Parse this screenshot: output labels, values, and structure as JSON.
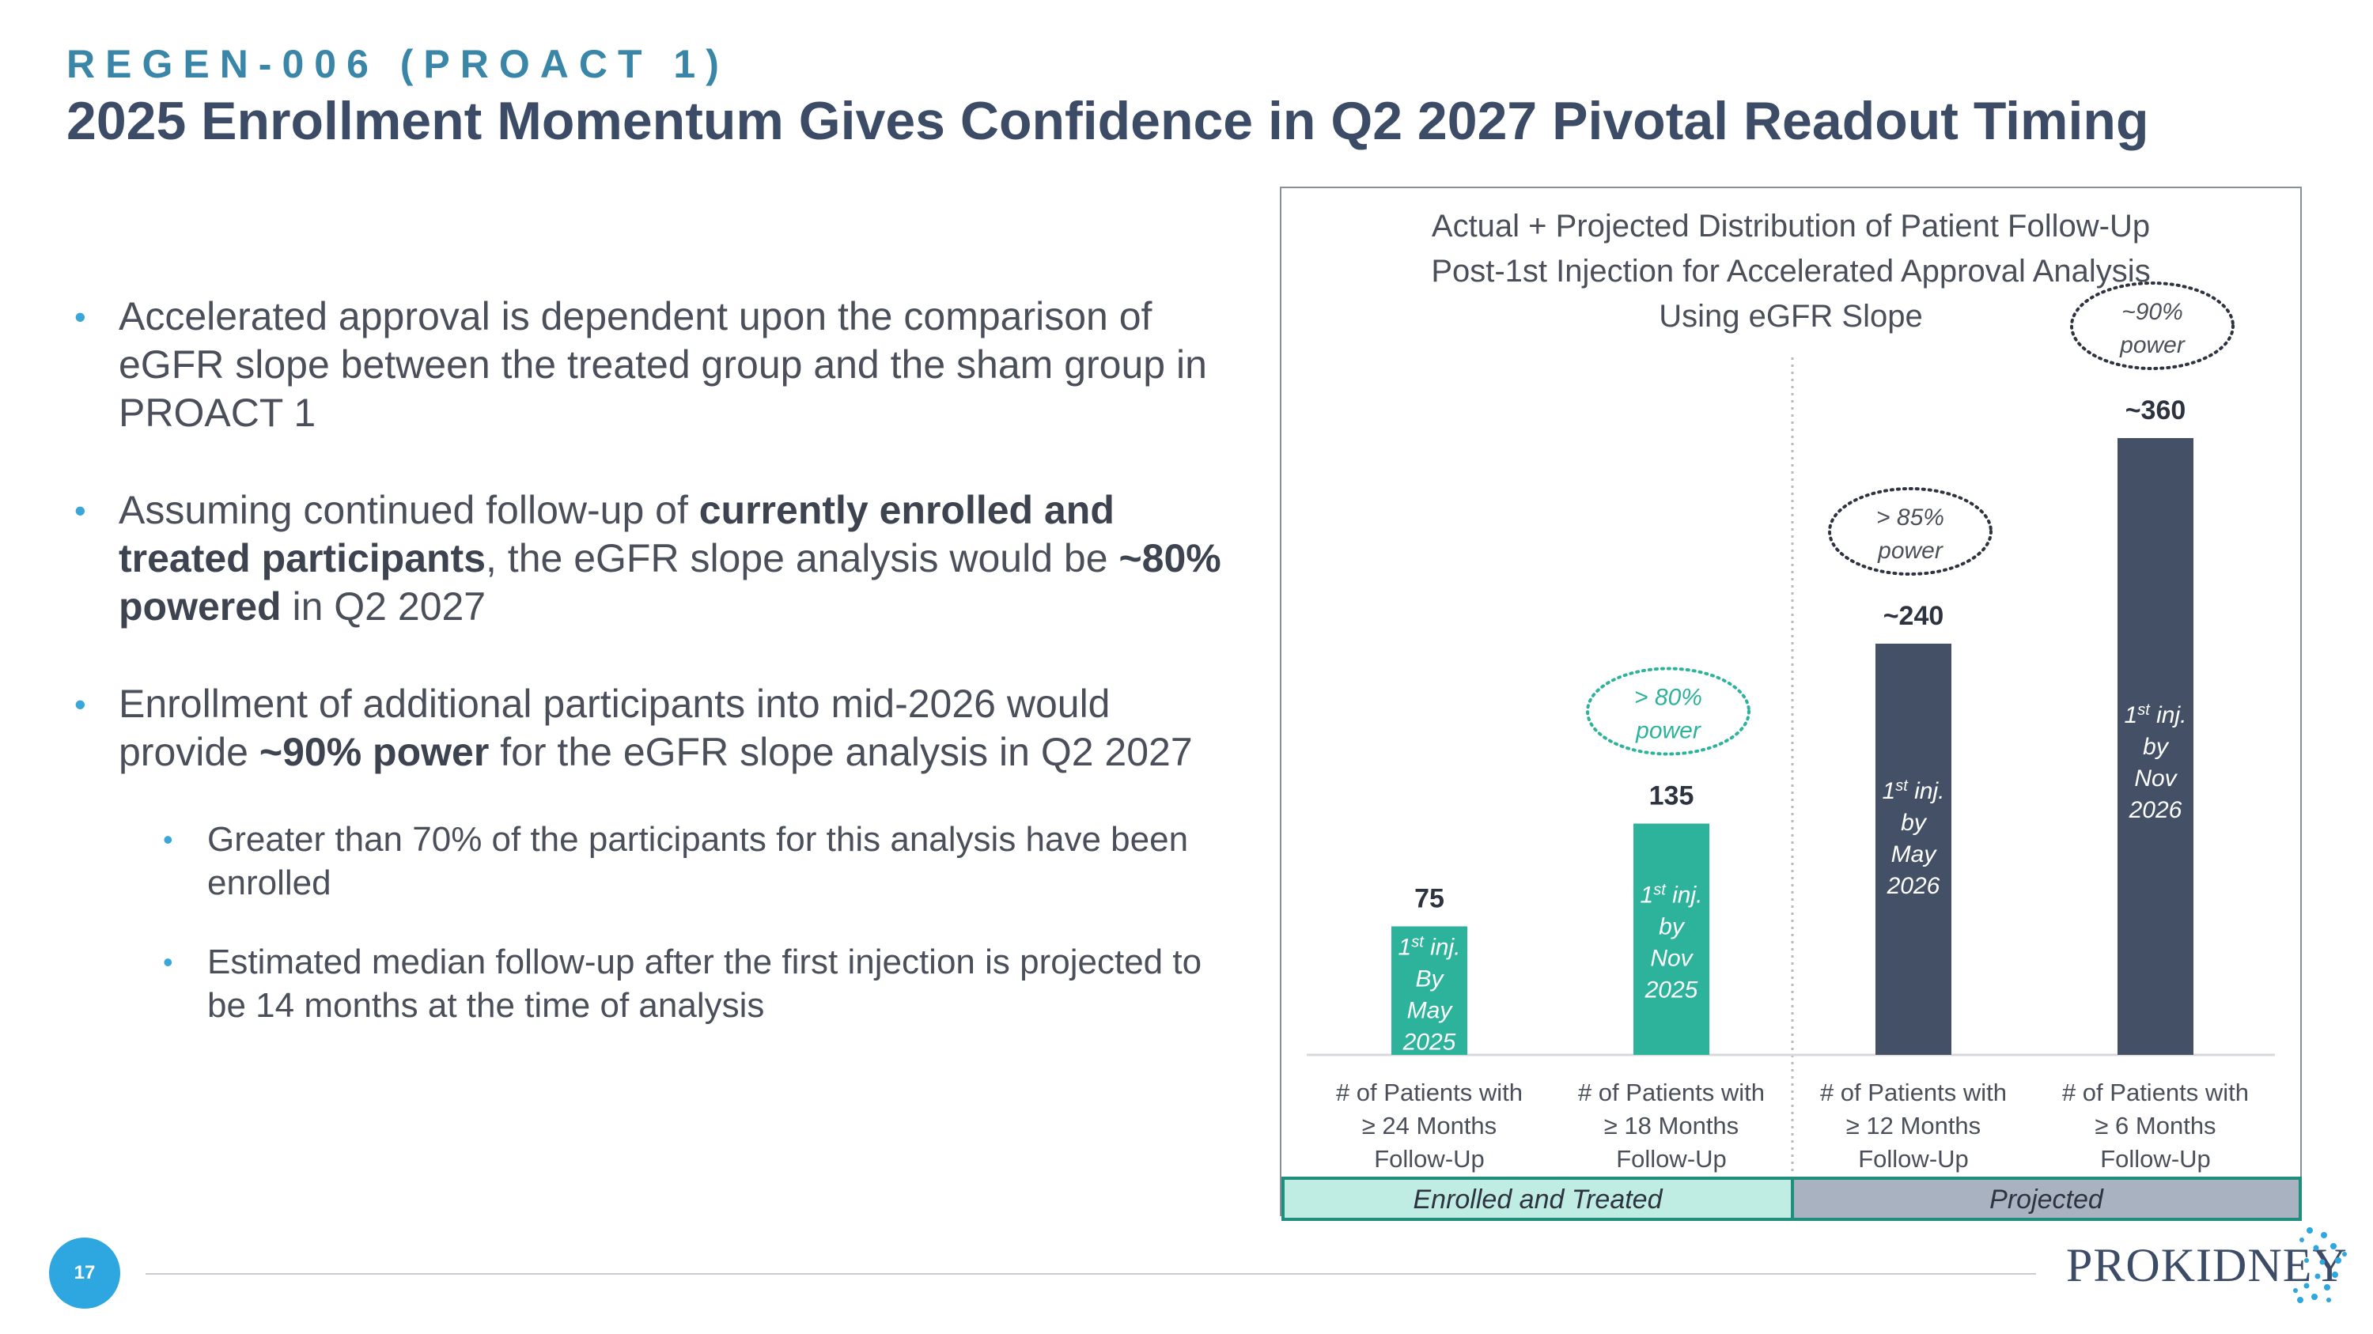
{
  "header": {
    "eyebrow": "REGEN-006 (PROACT 1)",
    "title": "2025 Enrollment Momentum Gives Confidence in Q2 2027 Pivotal Readout Timing"
  },
  "bullets": {
    "b1": "Accelerated approval is dependent upon the comparison of eGFR slope between the treated group and the sham group in PROACT 1",
    "b2_pre": "Assuming continued follow-up of ",
    "b2_bold1": "currently enrolled and treated participants",
    "b2_mid": ", the eGFR slope analysis would be ",
    "b2_bold2": "~80% powered",
    "b2_post": " in Q2 2027",
    "b3_pre": "Enrollment of additional participants into mid-2026 would provide ",
    "b3_bold": "~90% power",
    "b3_post": " for the eGFR slope analysis in Q2 2027",
    "sub1": "Greater than 70% of the participants for this analysis have been enrolled",
    "sub2": "Estimated median follow-up after the first injection is projected to be 14 months at the time of analysis"
  },
  "chart_data": {
    "type": "bar",
    "title_lines": [
      "Actual + Projected Distribution of Patient Follow-Up",
      "Post-1st Injection for Accelerated Approval Analysis",
      "Using eGFR Slope"
    ],
    "categories": [
      [
        "# of Patients with",
        "≥ 24 Months",
        "Follow-Up"
      ],
      [
        "# of Patients with",
        "≥ 18 Months",
        "Follow-Up"
      ],
      [
        "# of Patients with",
        "≥ 12 Months",
        "Follow-Up"
      ],
      [
        "# of Patients with",
        "≥ 6 Months",
        "Follow-Up"
      ]
    ],
    "values": [
      75,
      135,
      240,
      360
    ],
    "value_labels": [
      "75",
      "135",
      "~240",
      "~360"
    ],
    "bar_text": [
      [
        "By",
        "May",
        "2025"
      ],
      [
        "by",
        "Nov",
        "2025"
      ],
      [
        "by",
        "May",
        "2026"
      ],
      [
        "by",
        "Nov",
        "2026"
      ]
    ],
    "bar_text_prefix": "1",
    "bar_text_sup": "st",
    "bar_text_suffix": " inj.",
    "power_labels": [
      null,
      [
        "> 80%",
        "power"
      ],
      [
        "> 85%",
        "power"
      ],
      [
        "~90%",
        "power"
      ]
    ],
    "groups": [
      {
        "label": "Enrolled and Treated",
        "bars": [
          0,
          1
        ]
      },
      {
        "label": "Projected",
        "bars": [
          2,
          3
        ]
      }
    ],
    "colors": {
      "enrolled": "#2db39b",
      "projected": "#435066",
      "enrolled_band": "#bfece3",
      "projected_band": "#a9b2c1",
      "band_border": "#1f8e7a"
    },
    "ylim": [
      0,
      360
    ]
  },
  "footer": {
    "page_number": "17",
    "logo": "PROKIDNEY"
  }
}
